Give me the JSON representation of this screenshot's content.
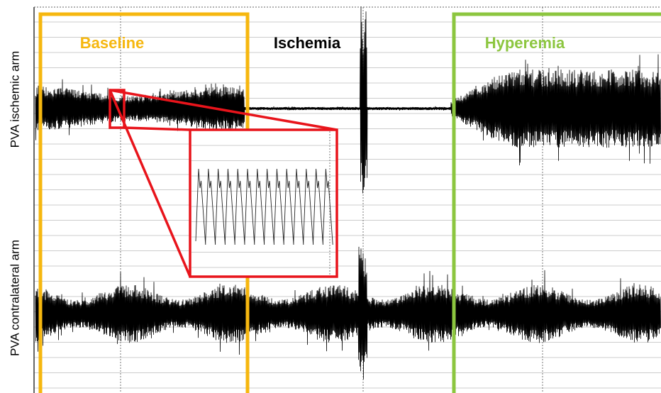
{
  "phases": {
    "baseline": "Baseline",
    "ischemia": "Ischemia",
    "hyperemia": "Hyperemia"
  },
  "channels": {
    "top": "PVA ischemic arm",
    "bottom": "PVA contralateral arm"
  }
}
